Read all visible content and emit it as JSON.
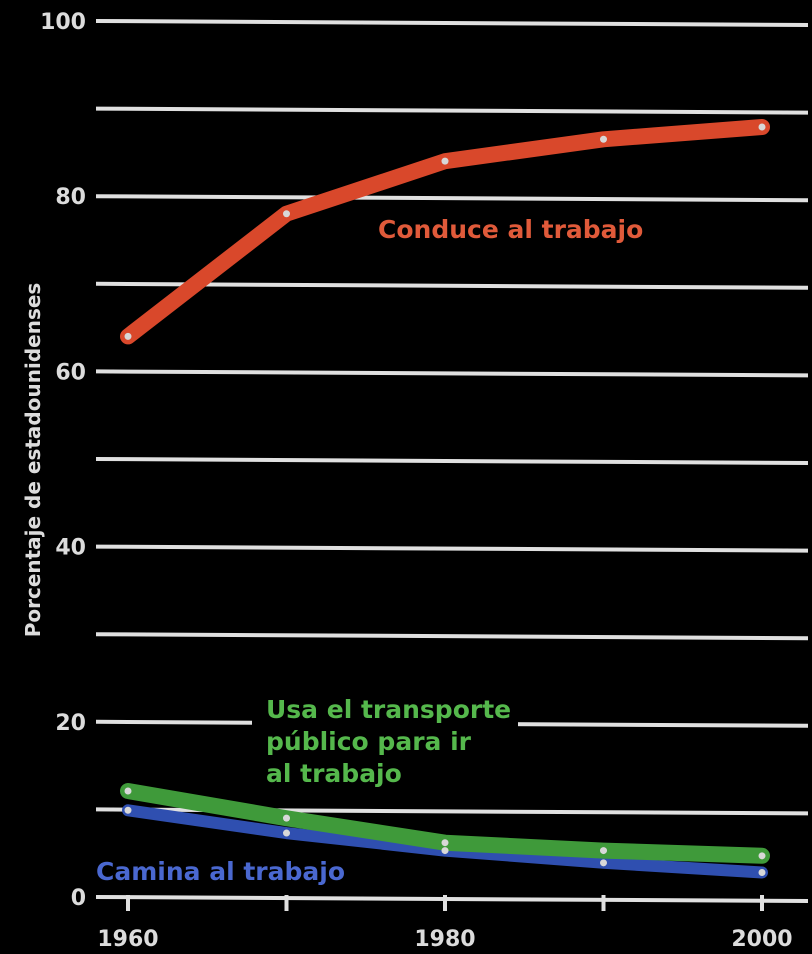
{
  "chart_data": {
    "type": "line",
    "xlabel": "",
    "ylabel": "Porcentaje de estadounidenses",
    "xlim": [
      1960,
      2000
    ],
    "ylim": [
      0,
      100
    ],
    "x_ticks": [
      1960,
      1980,
      2000
    ],
    "y_ticks": [
      0,
      20,
      40,
      60,
      80,
      100
    ],
    "y_gridlines": [
      10,
      20,
      30,
      40,
      50,
      60,
      70,
      80,
      90,
      100
    ],
    "grid": true,
    "x": [
      1960,
      1970,
      1980,
      1990,
      2000
    ],
    "series": [
      {
        "name": "Conduce al trabajo",
        "label_lines": [
          "Conduce al trabajo"
        ],
        "values": [
          64,
          78,
          84,
          86.5,
          87.9
        ],
        "color": "#d9482b"
      },
      {
        "name": "Usa el transporte público para ir al trabajo",
        "label_lines": [
          "Usa el transporte",
          "público para ir",
          "al trabajo"
        ],
        "values": [
          12.1,
          9,
          6.2,
          5.3,
          4.7
        ],
        "color": "#3f9a3a"
      },
      {
        "name": "Camina al trabajo",
        "label_lines": [
          "Camina al trabajo"
        ],
        "values": [
          9.9,
          7.3,
          5.3,
          3.9,
          2.8
        ],
        "color": "#2f4fb0"
      }
    ]
  }
}
